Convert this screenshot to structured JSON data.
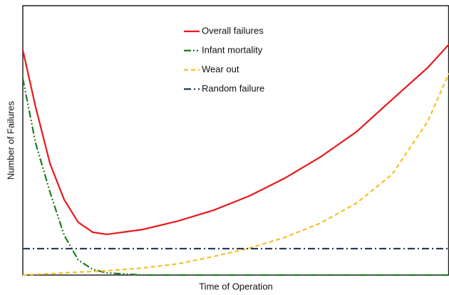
{
  "chart_data": {
    "type": "line",
    "xlabel": "Time of Operation",
    "ylabel": "Number of Failures",
    "x": [
      0,
      3,
      6.4,
      9.7,
      13,
      16.4,
      19.7,
      28.1,
      36.5,
      44.8,
      53.2,
      61.5,
      69.9,
      78.3,
      86.6,
      95,
      100
    ],
    "xlim": [
      0,
      100
    ],
    "ylim": [
      0,
      100
    ],
    "legend": "top",
    "series": [
      {
        "name": "Overall failures",
        "color": "#e8191c",
        "dash": "solid",
        "values": [
          83.6,
          62.4,
          41.3,
          28,
          19.6,
          15.9,
          15.1,
          16.9,
          20.1,
          24.1,
          29.4,
          36,
          43.9,
          53.2,
          65.1,
          77,
          85.7
        ]
      },
      {
        "name": "Infant mortality",
        "color": "#1e7a1e",
        "dash": "dashdotdot",
        "values": [
          73,
          49,
          30.7,
          14.8,
          5.6,
          2.1,
          0.8,
          0,
          0,
          0,
          0,
          0,
          0,
          0,
          0,
          0,
          0
        ]
      },
      {
        "name": "Wear out",
        "color": "#f5c02a",
        "dash": "dashed",
        "values": [
          0,
          0.3,
          0.5,
          0.8,
          1.1,
          1.3,
          1.6,
          2.6,
          4.2,
          6.9,
          10,
          14,
          19.3,
          26.7,
          37.3,
          57,
          74.9
        ]
      },
      {
        "name": "Random failure",
        "color": "#1f3b5c",
        "dash": "dashdot",
        "values": [
          9.8,
          9.8,
          9.8,
          9.8,
          9.8,
          9.8,
          9.8,
          9.8,
          9.8,
          9.8,
          9.8,
          9.8,
          9.8,
          9.8,
          9.8,
          9.8,
          9.8
        ]
      }
    ]
  }
}
